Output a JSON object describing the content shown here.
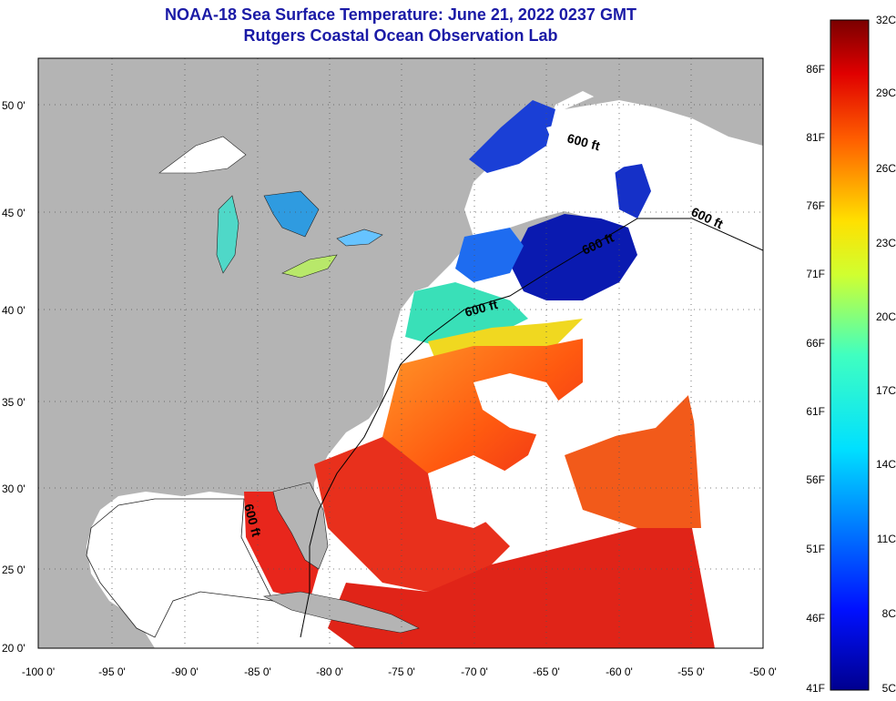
{
  "title": "NOAA-18 Sea Surface Temperature:  June 21, 2022 0237 GMT",
  "subtitle": "Rutgers Coastal Ocean Observation Lab",
  "lat_labels": [
    "50 0'",
    "45 0'",
    "40 0'",
    "35 0'",
    "30 0'",
    "25 0'",
    "20 0'"
  ],
  "lon_labels": [
    "-100 0'",
    "-95 0'",
    "-90 0'",
    "-85 0'",
    "-80 0'",
    "-75 0'",
    "-70 0'",
    "-65 0'",
    "-60 0'",
    "-55 0'",
    "-50 0'"
  ],
  "contour_label": "600 ft",
  "colorbar": {
    "celsius": [
      "32C",
      "29C",
      "26C",
      "23C",
      "20C",
      "17C",
      "14C",
      "11C",
      "8C",
      "5C"
    ],
    "fahrenheit": [
      "86F",
      "81F",
      "76F",
      "71F",
      "66F",
      "61F",
      "56F",
      "51F",
      "46F",
      "41F"
    ]
  },
  "colors": {
    "title": "#1a1aa6",
    "land": "#b4b4b4",
    "no_data": "#ffffff",
    "warm": "#e8301c",
    "cold": "#0a1ab0"
  }
}
